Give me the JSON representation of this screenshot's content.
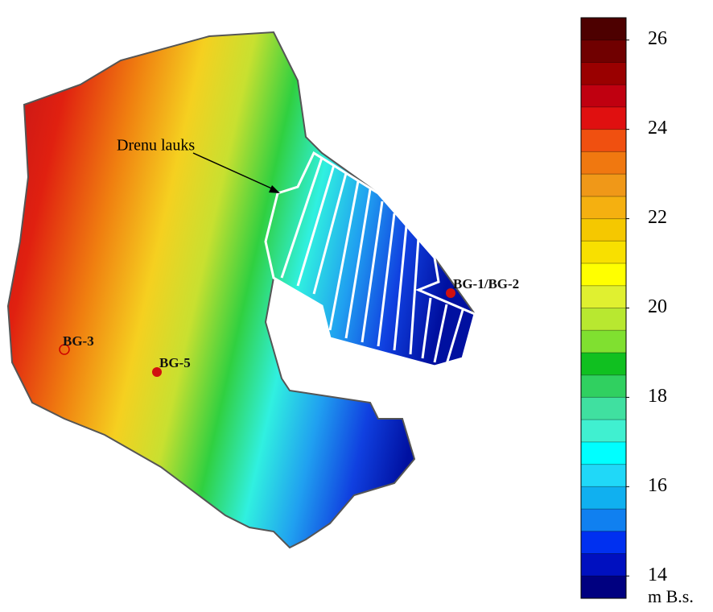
{
  "map": {
    "annotation": "Drenu lauks",
    "wells": [
      "BG-3",
      "BG-5",
      "BG-1/BG-2"
    ]
  },
  "colorbar": {
    "lim": [
      13.5,
      26.5
    ],
    "ticks": [
      14,
      16,
      18,
      20,
      22,
      24,
      26
    ],
    "unit": "m B.s.",
    "bands": [
      "#4d0000",
      "#700000",
      "#9a0000",
      "#c00010",
      "#e01010",
      "#f05010",
      "#f07810",
      "#f09818",
      "#f5b010",
      "#f5c800",
      "#f8e000",
      "#ffff00",
      "#e0f030",
      "#b8e830",
      "#80e030",
      "#10c020",
      "#30d060",
      "#40e0a0",
      "#40f0d0",
      "#00ffff",
      "#20d8f8",
      "#10b0f0",
      "#1080f0",
      "#0030f0",
      "#0010c0",
      "#000080"
    ]
  }
}
